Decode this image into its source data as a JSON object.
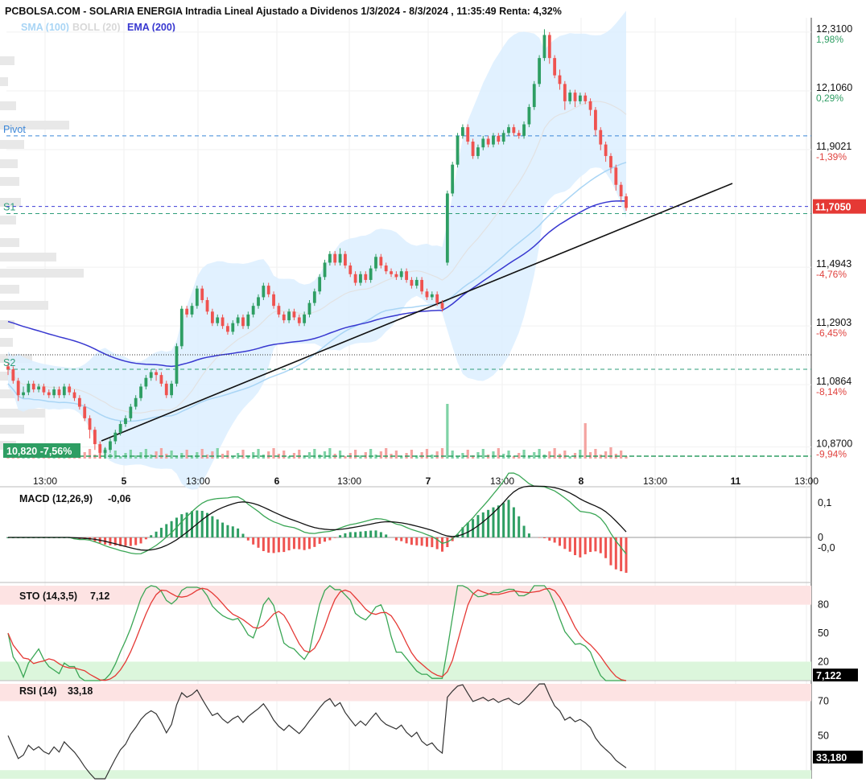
{
  "header": {
    "title": "PCBOLSA.COM - SOLARIA ENERGIA Intradia Lineal Ajustado a Dividenos 1/3/2024 - 8/3/2024 , 11:35:49 Renta: 4,32%"
  },
  "legend": {
    "sma": "SMA (100)",
    "boll": "BOLL (20)",
    "ema": "EMA (200)"
  },
  "colors": {
    "up": "#2e9e63",
    "down": "#ef5350",
    "sma": "#a9d5f5",
    "boll_fill": "#dcefff",
    "ema": "#3838d0",
    "pivot": "#3a86d8",
    "support": "#2e9e7a",
    "trend": "#111111",
    "price_flag": "#e53935",
    "low_flag": "#2e9e63"
  },
  "chart_data": [
    {
      "type": "candlestick",
      "title": "SOLARIA ENERGIA Intradia Lineal Ajustado a Dividenos 1/3/2024 - 8/3/2024",
      "y_ticks": [
        {
          "value": "12,3100",
          "pct": "1,98%"
        },
        {
          "value": "12,1060",
          "pct": "0,29%"
        },
        {
          "value": "11,9021",
          "pct": "-1,39%"
        },
        {
          "value": "11,4943",
          "pct": "-4,76%"
        },
        {
          "value": "11,2903",
          "pct": "-6,45%"
        },
        {
          "value": "11,0864",
          "pct": "-8,14%"
        },
        {
          "value": "10,8700",
          "pct": "-9,94%"
        }
      ],
      "ylim": [
        10.83,
        12.36
      ],
      "last_price": "11,7050",
      "low_marker": "10,820  -7,56%",
      "levels": [
        {
          "name": "Pivot",
          "value": 11.95
        },
        {
          "name": "S1",
          "value": 11.68
        },
        {
          "name": "S2",
          "value": 11.14
        }
      ],
      "current_level": 11.705,
      "dotted_level": 11.19,
      "x_ticks": [
        "13:00",
        "5",
        "13:00",
        "6",
        "13:00",
        "7",
        "13:00",
        "8",
        "13:00",
        "11",
        "13:00"
      ],
      "series": [
        {
          "name": "SMA (100)"
        },
        {
          "name": "BOLL (20)"
        },
        {
          "name": "EMA (200)"
        }
      ],
      "candles": [
        [
          11.15,
          11.14,
          11.16,
          11.12
        ],
        [
          11.14,
          11.1,
          11.15,
          11.09
        ],
        [
          11.1,
          11.05,
          11.11,
          11.03
        ],
        [
          11.05,
          11.06,
          11.08,
          11.04
        ],
        [
          11.06,
          11.09,
          11.1,
          11.05
        ],
        [
          11.09,
          11.07,
          11.1,
          11.06
        ],
        [
          11.07,
          11.08,
          11.09,
          11.06
        ],
        [
          11.08,
          11.06,
          11.09,
          11.05
        ],
        [
          11.06,
          11.05,
          11.07,
          11.04
        ],
        [
          11.05,
          11.07,
          11.08,
          11.04
        ],
        [
          11.07,
          11.05,
          11.08,
          11.04
        ],
        [
          11.05,
          11.08,
          11.09,
          11.04
        ],
        [
          11.08,
          11.06,
          11.09,
          11.05
        ],
        [
          11.06,
          11.04,
          11.07,
          11.03
        ],
        [
          11.04,
          11.01,
          11.05,
          11.0
        ],
        [
          11.01,
          10.97,
          11.02,
          10.96
        ],
        [
          10.97,
          10.93,
          10.98,
          10.9
        ],
        [
          10.93,
          10.88,
          10.94,
          10.86
        ],
        [
          10.88,
          10.85,
          10.89,
          10.83
        ],
        [
          10.85,
          10.86,
          10.87,
          10.83
        ],
        [
          10.86,
          10.89,
          10.9,
          10.85
        ],
        [
          10.89,
          10.92,
          10.93,
          10.88
        ],
        [
          10.92,
          10.95,
          10.96,
          10.91
        ],
        [
          10.95,
          10.97,
          10.98,
          10.94
        ],
        [
          10.97,
          11.01,
          11.02,
          10.96
        ],
        [
          11.01,
          11.04,
          11.05,
          11.0
        ],
        [
          11.04,
          11.08,
          11.09,
          11.03
        ],
        [
          11.08,
          11.11,
          11.12,
          11.07
        ],
        [
          11.11,
          11.13,
          11.14,
          11.1
        ],
        [
          11.13,
          11.12,
          11.14,
          11.1
        ],
        [
          11.12,
          11.09,
          11.13,
          11.08
        ],
        [
          11.09,
          11.05,
          11.1,
          11.04
        ],
        [
          11.05,
          11.09,
          11.1,
          11.04
        ],
        [
          11.09,
          11.22,
          11.23,
          11.08
        ],
        [
          11.22,
          11.35,
          11.36,
          11.21
        ],
        [
          11.35,
          11.33,
          11.36,
          11.32
        ],
        [
          11.33,
          11.36,
          11.37,
          11.32
        ],
        [
          11.36,
          11.42,
          11.43,
          11.35
        ],
        [
          11.42,
          11.38,
          11.43,
          11.37
        ],
        [
          11.38,
          11.34,
          11.39,
          11.33
        ],
        [
          11.34,
          11.3,
          11.35,
          11.29
        ],
        [
          11.3,
          11.32,
          11.33,
          11.29
        ],
        [
          11.32,
          11.29,
          11.33,
          11.28
        ],
        [
          11.29,
          11.27,
          11.3,
          11.26
        ],
        [
          11.27,
          11.3,
          11.31,
          11.26
        ],
        [
          11.3,
          11.32,
          11.33,
          11.29
        ],
        [
          11.32,
          11.29,
          11.33,
          11.28
        ],
        [
          11.29,
          11.33,
          11.34,
          11.28
        ],
        [
          11.33,
          11.36,
          11.37,
          11.32
        ],
        [
          11.36,
          11.39,
          11.4,
          11.35
        ],
        [
          11.39,
          11.43,
          11.44,
          11.38
        ],
        [
          11.43,
          11.4,
          11.44,
          11.39
        ],
        [
          11.4,
          11.36,
          11.41,
          11.35
        ],
        [
          11.36,
          11.33,
          11.37,
          11.32
        ],
        [
          11.33,
          11.31,
          11.34,
          11.3
        ],
        [
          11.31,
          11.34,
          11.35,
          11.3
        ],
        [
          11.34,
          11.32,
          11.35,
          11.31
        ],
        [
          11.32,
          11.3,
          11.33,
          11.29
        ],
        [
          11.3,
          11.33,
          11.34,
          11.29
        ],
        [
          11.33,
          11.37,
          11.38,
          11.32
        ],
        [
          11.37,
          11.41,
          11.42,
          11.36
        ],
        [
          11.41,
          11.46,
          11.47,
          11.4
        ],
        [
          11.46,
          11.51,
          11.52,
          11.45
        ],
        [
          11.51,
          11.54,
          11.55,
          11.5
        ],
        [
          11.54,
          11.51,
          11.55,
          11.5
        ],
        [
          11.51,
          11.54,
          11.56,
          11.5
        ],
        [
          11.54,
          11.5,
          11.55,
          11.49
        ],
        [
          11.5,
          11.47,
          11.51,
          11.46
        ],
        [
          11.47,
          11.44,
          11.48,
          11.43
        ],
        [
          11.44,
          11.47,
          11.48,
          11.43
        ],
        [
          11.47,
          11.45,
          11.48,
          11.44
        ],
        [
          11.45,
          11.49,
          11.5,
          11.44
        ],
        [
          11.49,
          11.53,
          11.54,
          11.48
        ],
        [
          11.53,
          11.5,
          11.54,
          11.49
        ],
        [
          11.5,
          11.48,
          11.51,
          11.47
        ],
        [
          11.48,
          11.47,
          11.49,
          11.46
        ],
        [
          11.47,
          11.46,
          11.48,
          11.45
        ],
        [
          11.46,
          11.48,
          11.49,
          11.45
        ],
        [
          11.48,
          11.45,
          11.49,
          11.44
        ],
        [
          11.45,
          11.43,
          11.46,
          11.42
        ],
        [
          11.43,
          11.45,
          11.46,
          11.42
        ],
        [
          11.45,
          11.41,
          11.46,
          11.4
        ],
        [
          11.41,
          11.39,
          11.42,
          11.38
        ],
        [
          11.39,
          11.4,
          11.41,
          11.38
        ],
        [
          11.4,
          11.37,
          11.41,
          11.36
        ],
        [
          11.37,
          11.35,
          11.38,
          11.34
        ],
        [
          11.51,
          11.75,
          11.76,
          11.5
        ],
        [
          11.75,
          11.85,
          11.86,
          11.74
        ],
        [
          11.85,
          11.95,
          11.96,
          11.84
        ],
        [
          11.95,
          11.98,
          11.99,
          11.94
        ],
        [
          11.98,
          11.93,
          11.99,
          11.92
        ],
        [
          11.93,
          11.88,
          11.94,
          11.87
        ],
        [
          11.88,
          11.91,
          11.92,
          11.87
        ],
        [
          11.91,
          11.94,
          11.95,
          11.9
        ],
        [
          11.94,
          11.92,
          11.95,
          11.91
        ],
        [
          11.92,
          11.95,
          11.96,
          11.91
        ],
        [
          11.95,
          11.93,
          11.96,
          11.92
        ],
        [
          11.93,
          11.96,
          11.97,
          11.92
        ],
        [
          11.96,
          11.98,
          11.99,
          11.95
        ],
        [
          11.98,
          11.96,
          11.99,
          11.95
        ],
        [
          11.96,
          11.95,
          11.97,
          11.94
        ],
        [
          11.95,
          11.99,
          12.0,
          11.94
        ],
        [
          11.99,
          12.05,
          12.06,
          11.98
        ],
        [
          12.05,
          12.13,
          12.14,
          12.04
        ],
        [
          12.13,
          12.22,
          12.23,
          12.12
        ],
        [
          12.22,
          12.3,
          12.32,
          12.21
        ],
        [
          12.3,
          12.22,
          12.31,
          12.2
        ],
        [
          12.22,
          12.16,
          12.23,
          12.15
        ],
        [
          12.16,
          12.13,
          12.18,
          12.11
        ],
        [
          12.13,
          12.07,
          12.14,
          12.04
        ],
        [
          12.07,
          12.1,
          12.11,
          12.06
        ],
        [
          12.1,
          12.07,
          12.11,
          12.05
        ],
        [
          12.07,
          12.09,
          12.1,
          12.06
        ],
        [
          12.09,
          12.07,
          12.1,
          12.06
        ],
        [
          12.07,
          12.04,
          12.08,
          12.02
        ],
        [
          12.04,
          11.97,
          12.05,
          11.95
        ],
        [
          11.97,
          11.92,
          11.98,
          11.9
        ],
        [
          11.92,
          11.88,
          11.93,
          11.86
        ],
        [
          11.88,
          11.84,
          11.89,
          11.82
        ],
        [
          11.84,
          11.78,
          11.85,
          11.76
        ],
        [
          11.78,
          11.74,
          11.79,
          11.72
        ],
        [
          11.74,
          11.7,
          11.75,
          11.69
        ]
      ]
    },
    {
      "type": "line",
      "title": "MACD (12,26,9)",
      "value_label": "-0,06",
      "y_ticks": [
        "0,1",
        "0",
        "-0,0"
      ],
      "ylim": [
        -0.13,
        0.13
      ]
    },
    {
      "type": "line",
      "title": "STO (14,3,5)",
      "value_label": "7,12",
      "y_ticks": [
        "80",
        "50",
        "20"
      ],
      "current": "7,122",
      "ylim": [
        0,
        100
      ]
    },
    {
      "type": "line",
      "title": "RSI (14)",
      "value_label": "33,18",
      "y_ticks": [
        "70",
        "50"
      ],
      "current": "33,180",
      "ylim": [
        25,
        80
      ]
    }
  ]
}
